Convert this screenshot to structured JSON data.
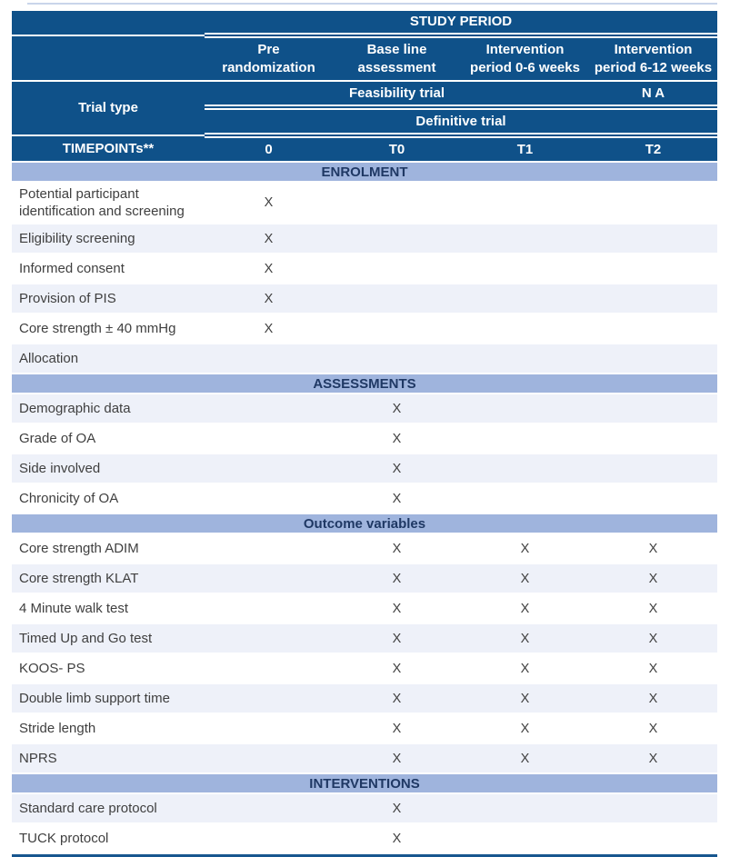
{
  "colors": {
    "header_bg": "#0f5189",
    "header_text": "#ffffff",
    "band_bg": "#9fb4dd",
    "band_text": "#1f3864",
    "row_tint": "#eef1f9",
    "body_text": "#3f3f3f",
    "bottom_line": "#17568f",
    "white_rule": "#ffffff"
  },
  "header": {
    "study_period": "STUDY PERIOD",
    "columns": [
      {
        "line1": "Pre",
        "line2": "randomization"
      },
      {
        "line1": "Base line",
        "line2": "assessment"
      },
      {
        "line1": "Intervention",
        "line2": "period 0-6 weeks"
      },
      {
        "line1": "Intervention",
        "line2": "period 6-12 weeks"
      }
    ],
    "trial_type_label": "Trial type",
    "feasibility_label": "Feasibility trial",
    "na_label": "N A",
    "definitive_label": "Definitive trial",
    "timepoints_label": "TIMEPOINTs**",
    "timepoints": [
      "0",
      "T0",
      "T1",
      "T2"
    ]
  },
  "sections": [
    {
      "title": "ENROLMENT",
      "rows": [
        {
          "label": "Potential participant identification and screening",
          "marks": [
            "X",
            "",
            "",
            ""
          ]
        },
        {
          "label": "Eligibility screening",
          "marks": [
            "X",
            "",
            "",
            ""
          ]
        },
        {
          "label": "Informed consent",
          "marks": [
            "X",
            "",
            "",
            ""
          ]
        },
        {
          "label": "Provision of PIS",
          "marks": [
            "X",
            "",
            "",
            ""
          ]
        },
        {
          "label": "Core strength ± 40 mmHg",
          "marks": [
            "X",
            "",
            "",
            ""
          ]
        },
        {
          "label": "Allocation",
          "marks": [
            "",
            "",
            "",
            ""
          ]
        }
      ]
    },
    {
      "title": "ASSESSMENTS",
      "rows": [
        {
          "label": "Demographic data",
          "marks": [
            "",
            "X",
            "",
            ""
          ]
        },
        {
          "label": "Grade of OA",
          "marks": [
            "",
            "X",
            "",
            ""
          ]
        },
        {
          "label": "Side involved",
          "marks": [
            "",
            "X",
            "",
            ""
          ]
        },
        {
          "label": "Chronicity of OA",
          "marks": [
            "",
            "X",
            "",
            ""
          ]
        }
      ]
    },
    {
      "title": "Outcome variables",
      "rows": [
        {
          "label": "Core strength ADIM",
          "marks": [
            "",
            "X",
            "X",
            "X"
          ]
        },
        {
          "label": "Core strength KLAT",
          "marks": [
            "",
            "X",
            "X",
            "X"
          ]
        },
        {
          "label": "4 Minute walk test",
          "marks": [
            "",
            "X",
            "X",
            "X"
          ]
        },
        {
          "label": "Timed Up and Go test",
          "marks": [
            "",
            "X",
            "X",
            "X"
          ]
        },
        {
          "label": "KOOS- PS",
          "marks": [
            "",
            "X",
            "X",
            "X"
          ]
        },
        {
          "label": "Double limb support time",
          "marks": [
            "",
            "X",
            "X",
            "X"
          ]
        },
        {
          "label": "Stride length",
          "marks": [
            "",
            "X",
            "X",
            "X"
          ]
        },
        {
          "label": "NPRS",
          "marks": [
            "",
            "X",
            "X",
            "X"
          ]
        }
      ]
    },
    {
      "title": "INTERVENTIONS",
      "rows": [
        {
          "label": "Standard care protocol",
          "marks": [
            "",
            "X",
            "",
            ""
          ]
        },
        {
          "label": "TUCK protocol",
          "marks": [
            "",
            "X",
            "",
            ""
          ]
        }
      ]
    }
  ]
}
